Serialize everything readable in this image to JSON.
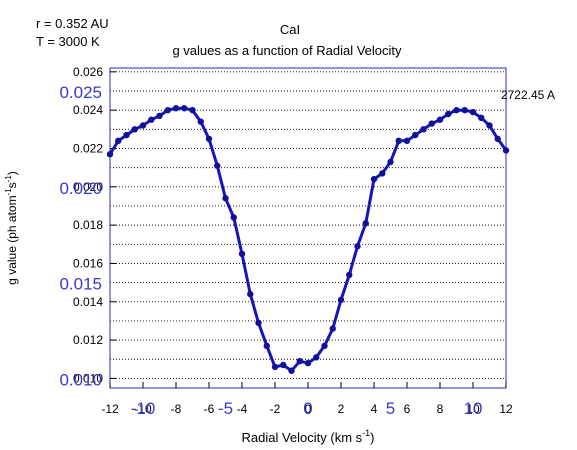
{
  "chart_data": {
    "type": "line",
    "title": "CaI",
    "subtitle": "g values as a function of Radial Velocity",
    "annotations": {
      "distance": "r = 0.352 AU",
      "temperature": "T = 3000 K",
      "wavelength": "2722.45 A"
    },
    "xlabel": "Radial Velocity (km s",
    "xlabel_sup": "-1",
    "xlabel_close": ")",
    "ylabel": "g value (ph atom",
    "ylabel_sup": "-1",
    "ylabel_mid": "s",
    "ylabel_sup2": "-1",
    "ylabel_close": ")",
    "xlim": [
      -12,
      12
    ],
    "ylim": [
      0.0095,
      0.0262
    ],
    "x_ticks": [
      "-12",
      "-10",
      "-8",
      "-6",
      "-4",
      "-2",
      "0",
      "2",
      "4",
      "6",
      "8",
      "10",
      "12"
    ],
    "y_ticks": [
      "0.010",
      "0.012",
      "0.014",
      "0.016",
      "0.018",
      "0.020",
      "0.022",
      "0.024",
      "0.026"
    ],
    "overlay_x_ticks": [
      "-10",
      "-5",
      "0",
      "5",
      "10"
    ],
    "overlay_y_ticks": [
      "0.010",
      "0.015",
      "0.020",
      "0.025"
    ],
    "grid": "horizontal dotted",
    "colors": {
      "series": "#1616b8",
      "marker": "#10109a",
      "overlay": "#3a3ac8",
      "frame": "#2828c0"
    },
    "series": [
      {
        "x": [
          -12,
          -11.5,
          -11,
          -10.5,
          -10,
          -9.5,
          -9,
          -8.5,
          -8,
          -7.5,
          -7,
          -6.5,
          -6,
          -5.5,
          -5,
          -4.5,
          -4,
          -3.5,
          -3,
          -2.5,
          -2,
          -1.5,
          -1,
          -0.5,
          0,
          0.5,
          1,
          1.5,
          2,
          2.5,
          3,
          3.5,
          4,
          4.5,
          5,
          5.5,
          6,
          6.5,
          7,
          7.5,
          8,
          8.5,
          9,
          9.5,
          10,
          10.5,
          11,
          11.5,
          12
        ],
        "values": [
          0.0217,
          0.0224,
          0.0227,
          0.023,
          0.0232,
          0.0235,
          0.0237,
          0.024,
          0.0241,
          0.0241,
          0.024,
          0.0234,
          0.0225,
          0.0211,
          0.0194,
          0.0184,
          0.0165,
          0.0144,
          0.0129,
          0.0117,
          0.0106,
          0.0107,
          0.0104,
          0.0109,
          0.0108,
          0.0111,
          0.0117,
          0.0126,
          0.0141,
          0.0154,
          0.0169,
          0.0181,
          0.0204,
          0.0207,
          0.0213,
          0.0224,
          0.0224,
          0.0227,
          0.023,
          0.0233,
          0.0235,
          0.0238,
          0.024,
          0.024,
          0.0239,
          0.0236,
          0.0232,
          0.0225,
          0.0219
        ]
      }
    ]
  }
}
